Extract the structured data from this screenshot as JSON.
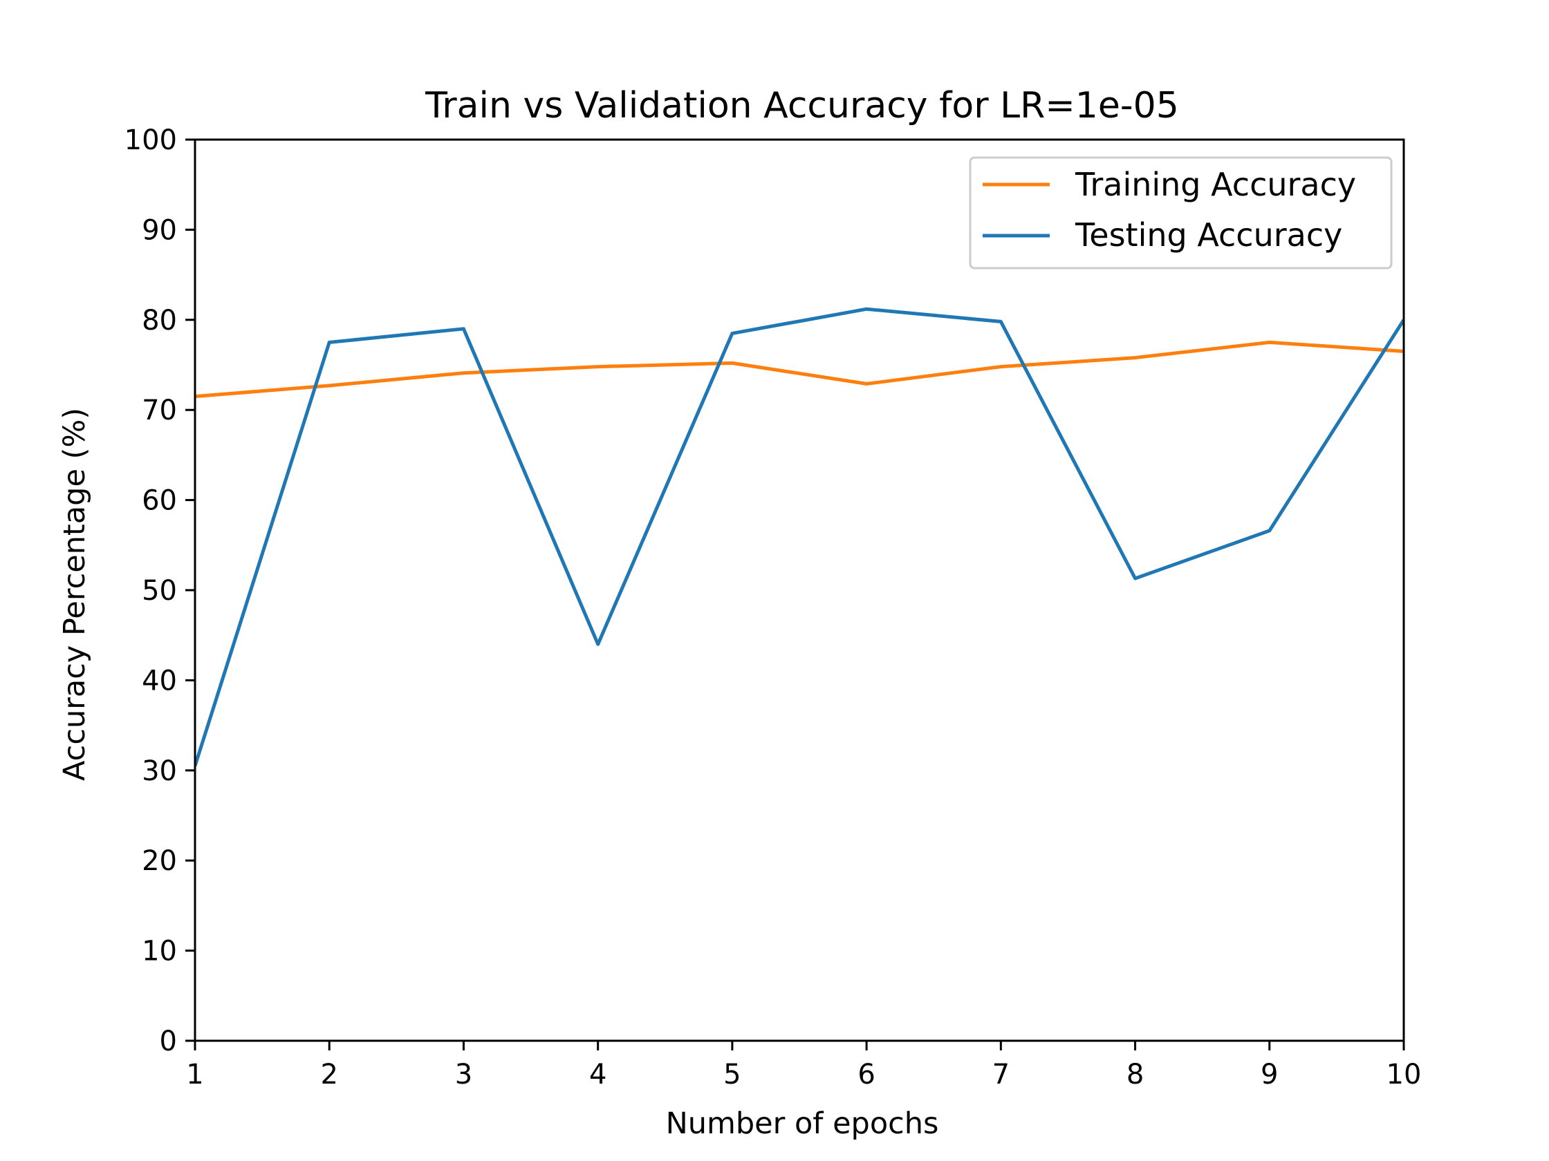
{
  "chart_data": {
    "type": "line",
    "title": "Train vs Validation Accuracy for LR=1e-05",
    "xlabel": "Number of epochs",
    "ylabel": "Accuracy Percentage (%)",
    "x": [
      1,
      2,
      3,
      4,
      5,
      6,
      7,
      8,
      9,
      10
    ],
    "xlim": [
      1,
      10
    ],
    "ylim": [
      0,
      100
    ],
    "xticks": [
      1,
      2,
      3,
      4,
      5,
      6,
      7,
      8,
      9,
      10
    ],
    "yticks": [
      0,
      10,
      20,
      30,
      40,
      50,
      60,
      70,
      80,
      90,
      100
    ],
    "grid": false,
    "legend_position": "top-right",
    "series": [
      {
        "name": "Training Accuracy",
        "color": "#ff7f0e",
        "values": [
          71.5,
          72.7,
          74.1,
          74.8,
          75.2,
          72.9,
          74.8,
          75.8,
          77.5,
          76.5
        ]
      },
      {
        "name": "Testing Accuracy",
        "color": "#1f77b4",
        "values": [
          30.5,
          77.5,
          79.0,
          44.0,
          78.5,
          81.2,
          79.8,
          51.3,
          56.6,
          80.0
        ]
      }
    ]
  }
}
